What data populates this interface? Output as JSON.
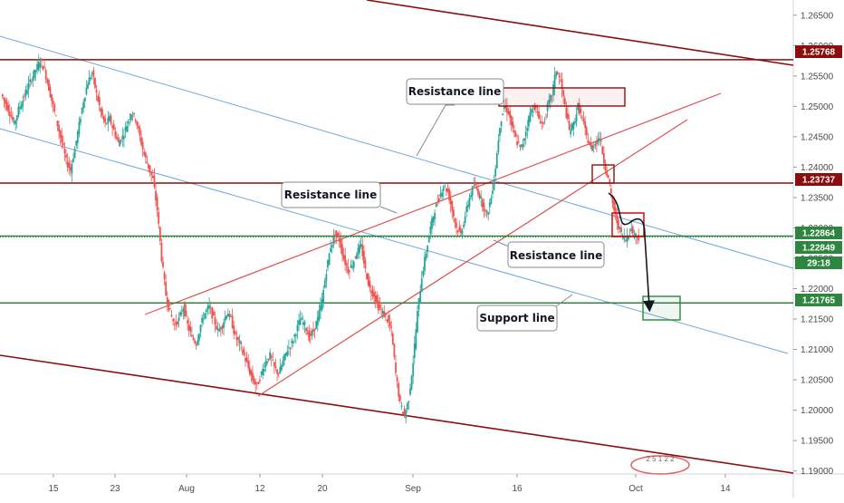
{
  "chart_data": {
    "type": "candlestick",
    "x_ticks": [
      {
        "label": "15",
        "x": 59
      },
      {
        "label": "23",
        "x": 127
      },
      {
        "label": "Aug",
        "x": 206
      },
      {
        "label": "12",
        "x": 287
      },
      {
        "label": "20",
        "x": 356
      },
      {
        "label": "Sep",
        "x": 456
      },
      {
        "label": "16",
        "x": 571
      },
      {
        "label": "Oct",
        "x": 702
      },
      {
        "label": "14",
        "x": 801
      }
    ],
    "y_ticks": [
      "1.26500",
      "1.26000",
      "1.25500",
      "1.25000",
      "1.24500",
      "1.24000",
      "1.23500",
      "1.23000",
      "1.22500",
      "1.22000",
      "1.21500",
      "1.21000",
      "1.20500",
      "1.20000",
      "1.19500",
      "1.19000"
    ],
    "y_tick_values": [
      1.265,
      1.26,
      1.255,
      1.25,
      1.245,
      1.24,
      1.235,
      1.23,
      1.225,
      1.22,
      1.215,
      1.21,
      1.205,
      1.2,
      1.195,
      1.19
    ],
    "ylim": [
      1.1895,
      1.2675
    ],
    "price_tags": [
      {
        "label": "1.25768",
        "value": 1.25768,
        "color": "#8b0e0e"
      },
      {
        "label": "1.23737",
        "value": 1.23737,
        "color": "#8b0e0e"
      },
      {
        "label": "1.22864",
        "value": 1.22864,
        "color": "#2e8540"
      },
      {
        "label": "1.22849",
        "value": 1.22849,
        "color": "#2e8540"
      },
      {
        "label": "29:18",
        "value": 1.2262,
        "color": "#2e8540"
      },
      {
        "label": "1.21765",
        "value": 1.21765,
        "color": "#2e8540"
      }
    ],
    "horizontal_lines": [
      {
        "value": 1.25768,
        "color": "#8b0e0e"
      },
      {
        "value": 1.23737,
        "color": "#8b0e0e"
      },
      {
        "value": 1.22864,
        "color": "#2e8540"
      },
      {
        "value": 1.21765,
        "color": "#2e8540"
      }
    ],
    "annotations": [
      {
        "text": "Resistance line",
        "pointer": "resistance-upper"
      },
      {
        "text": "Resistance line",
        "pointer": "resistance-middle"
      },
      {
        "text": "Resistance line",
        "pointer": "resistance-lower"
      },
      {
        "text": "Support line",
        "pointer": "support"
      }
    ],
    "price_path": [
      [
        1.252,
        1.2505,
        1.249,
        1.247,
        1.2495,
        1.251,
        1.253,
        1.2545,
        1.256,
        1.2575,
        1.256,
        1.253,
        1.25,
        1.247,
        1.244,
        1.241,
        1.2395,
        1.243,
        1.247,
        1.251,
        1.254,
        1.2555,
        1.252,
        1.249,
        1.247,
        1.248,
        1.246,
        1.244,
        1.245,
        1.247,
        1.249,
        1.248,
        1.245,
        1.242,
        1.24,
        1.238,
        1.233,
        1.225,
        1.219,
        1.216,
        1.214,
        1.215,
        1.217,
        1.214,
        1.212,
        1.211,
        1.214,
        1.216,
        1.217,
        1.215,
        1.213,
        1.214,
        1.216,
        1.215,
        1.212,
        1.211,
        1.209,
        1.207,
        1.205,
        1.204,
        1.206,
        1.208,
        1.209,
        1.207,
        1.206,
        1.208,
        1.21,
        1.211,
        1.213,
        1.215,
        1.214,
        1.212,
        1.213,
        1.215,
        1.218,
        1.223,
        1.227,
        1.229,
        1.228,
        1.225,
        1.223,
        1.224,
        1.226,
        1.227,
        1.223,
        1.22,
        1.219,
        1.217,
        1.216,
        1.215,
        1.213,
        1.206,
        1.201,
        1.199,
        1.202,
        1.208,
        1.216,
        1.222,
        1.226,
        1.23,
        1.233,
        1.235,
        1.237,
        1.236,
        1.233,
        1.23,
        1.229,
        1.232,
        1.235,
        1.237,
        1.236,
        1.234,
        1.232,
        1.235,
        1.24,
        1.247,
        1.25,
        1.249,
        1.246,
        1.244,
        1.243,
        1.246,
        1.249,
        1.25,
        1.248,
        1.247,
        1.25,
        1.252,
        1.256,
        1.254,
        1.25,
        1.246,
        1.247,
        1.25,
        1.248,
        1.245,
        1.243,
        1.244,
        1.245,
        1.241,
        1.238,
        1.234,
        1.231,
        1.229,
        1.228,
        1.23,
        1.229,
        1.2285
      ]
    ]
  },
  "watermark": {
    "text": "2 5 1 2 2"
  }
}
